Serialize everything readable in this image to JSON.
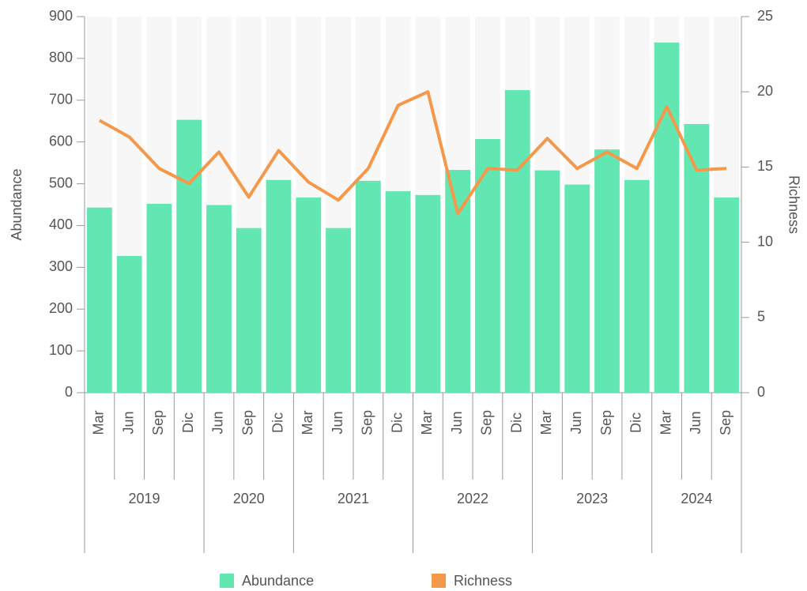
{
  "chart_data": {
    "type": "bar-line",
    "groups": [
      {
        "label": "2019",
        "categories": [
          "Mar",
          "Jun",
          "Sep",
          "Dic"
        ]
      },
      {
        "label": "2020",
        "categories": [
          "Jun",
          "Sep",
          "Dic"
        ]
      },
      {
        "label": "2021",
        "categories": [
          "Mar",
          "Jun",
          "Sep",
          "Dic"
        ]
      },
      {
        "label": "2022",
        "categories": [
          "Mar",
          "Jun",
          "Sep",
          "Dic"
        ]
      },
      {
        "label": "2023",
        "categories": [
          "Mar",
          "Jun",
          "Sep",
          "Dic"
        ]
      },
      {
        "label": "2024",
        "categories": [
          "Mar",
          "Jun",
          "Sep"
        ]
      }
    ],
    "series": [
      {
        "name": "Abundance",
        "type": "bar",
        "color": "#62e6b2",
        "values": [
          443,
          327,
          452,
          653,
          449,
          394,
          509,
          467,
          394,
          507,
          482,
          473,
          533,
          607,
          724,
          532,
          498,
          582,
          509,
          838,
          643,
          467
        ]
      },
      {
        "name": "Richness",
        "type": "line",
        "axis": "y2",
        "color": "#f5984a",
        "values": [
          18.1,
          17,
          14.9,
          13.9,
          16,
          13,
          16.1,
          14,
          12.8,
          14.9,
          19.1,
          20,
          11.9,
          14.9,
          14.8,
          16.9,
          14.9,
          16,
          14.9,
          19,
          14.8,
          14.9
        ]
      }
    ],
    "y_label": "Abundance",
    "y2_label": "Richness",
    "ylim": [
      0,
      900
    ],
    "yticks": [
      0,
      100,
      200,
      300,
      400,
      500,
      600,
      700,
      800,
      900
    ],
    "y2lim": [
      0,
      25
    ],
    "y2ticks": [
      0,
      5,
      10,
      15,
      20,
      25
    ]
  }
}
